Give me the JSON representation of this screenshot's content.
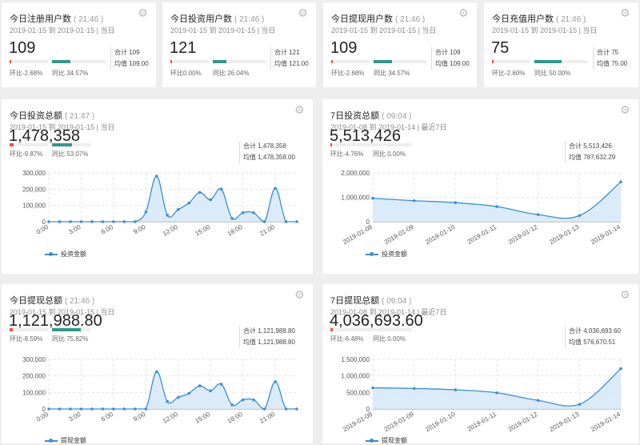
{
  "colors": {
    "accent": "#3a8fd6",
    "area": "#d6e8f8",
    "down_bar": "#e8563a",
    "up_bar": "#2e9a8c",
    "background": "#eeeeee"
  },
  "icons": {
    "settings": "gear-icon"
  },
  "stat_cards": [
    {
      "title": "今日注册用户数",
      "time": "( 21:46 )",
      "range": "2019-01-15 到 2019-01-15 | 当日",
      "value": "109",
      "hb": "环比-2.68%",
      "tb": "同比 34.57%",
      "hb_pct": 2.68,
      "tb_pct": 34.57,
      "sum": "合计 109",
      "avg": "均值 109.00"
    },
    {
      "title": "今日投资用户数",
      "time": "( 21:46 )",
      "range": "2019-01-15 到 2019-01-15 | 当日",
      "value": "121",
      "hb": "环比0.00%",
      "tb": "同比 26.04%",
      "hb_pct": 0,
      "tb_pct": 26.04,
      "sum": "合计 121",
      "avg": "均值 121.00"
    },
    {
      "title": "今日提现用户数",
      "time": "( 21:46 )",
      "range": "2019-01-15 到 2019-01-15 | 当日",
      "value": "109",
      "hb": "环比-2.68%",
      "tb": "同比 34.57%",
      "hb_pct": 2.68,
      "tb_pct": 34.57,
      "sum": "合计 109",
      "avg": "均值 109.00"
    },
    {
      "title": "今日充值用户数",
      "time": "( 21:46 )",
      "range": "2019-01-15 到 2019-01-15 | 当日",
      "value": "75",
      "hb": "环比-2.60%",
      "tb": "同比 50.00%",
      "hb_pct": 2.6,
      "tb_pct": 50.0,
      "sum": "合计 75",
      "avg": "均值 75.00"
    }
  ],
  "chart_cards": [
    {
      "title": "今日投资总额",
      "time": "( 21:47 )",
      "range": "2019-01-15 到 2019-01-15 | 当日",
      "value": "1,478,358",
      "hb": "环比-9.87%",
      "tb": "同比 53.07%",
      "hb_pct": 9.87,
      "tb_pct": 53.07,
      "sum": "合计 1,478,358",
      "avg": "均值 1,478,358.00",
      "legend": "投资金额"
    },
    {
      "title": "7日投资总额",
      "time": "( 09:04 )",
      "range": "2019-01-08 到 2019-01-14 | 最近7日",
      "value": "5,513,426",
      "hb": "环比-4.76%",
      "tb": "同比 0.00%",
      "hb_pct": 4.76,
      "tb_pct": 0,
      "sum": "合计 5,513,426",
      "avg": "均值 787,632.29",
      "legend": "投资金额"
    },
    {
      "title": "今日提现总额",
      "time": "( 21:46 )",
      "range": "2019-01-15 到 2019-01-15 | 当日",
      "value": "1,121,988.80",
      "hb": "环比-8.59%",
      "tb": "同比 75.82%",
      "hb_pct": 8.59,
      "tb_pct": 75.82,
      "sum": "合计 1,121,988.80",
      "avg": "均值 1,121,988.80",
      "legend": "提现金额"
    },
    {
      "title": "7日提现总额",
      "time": "( 09:04 )",
      "range": "2019-01-08 到 2019-01-14 | 最近7日",
      "value": "4,036,693.60",
      "hb": "环比-6.48%",
      "tb": "同比 0.00%",
      "hb_pct": 6.48,
      "tb_pct": 0,
      "sum": "合计 4,036,693.60",
      "avg": "均值 576,670.51",
      "legend": "提现金额"
    }
  ],
  "chart_data": [
    {
      "type": "area",
      "x": [
        0,
        1,
        2,
        3,
        4,
        5,
        6,
        7,
        8,
        9,
        10,
        11,
        12,
        13,
        14,
        15,
        16,
        17,
        18,
        19,
        20,
        21,
        22,
        23
      ],
      "xticks": [
        0,
        3,
        6,
        9,
        12,
        15,
        18,
        21
      ],
      "xtick_labels": [
        "0:00",
        "3:00",
        "6:00",
        "9:00",
        "12:00",
        "15:00",
        "18:00",
        "21:00"
      ],
      "series": [
        {
          "name": "投资金额",
          "values": [
            0,
            0,
            0,
            0,
            0,
            0,
            0,
            0,
            0,
            60000,
            280000,
            40000,
            75000,
            115000,
            180000,
            135000,
            200000,
            20000,
            55000,
            55000,
            0,
            205000,
            0,
            0
          ]
        }
      ],
      "ylim": [
        0,
        300000
      ],
      "yticks": [
        0,
        100000,
        200000,
        300000
      ],
      "ytick_labels": [
        "0",
        "100,000",
        "200,000",
        "300,000"
      ],
      "legend": "bottom-left",
      "grid": true
    },
    {
      "type": "area",
      "x": [
        "2019-01-08",
        "2019-01-09",
        "2019-01-10",
        "2019-01-11",
        "2019-01-12",
        "2019-01-13",
        "2019-01-14"
      ],
      "xtick_labels": [
        "2019-01-08",
        "2019-01-09",
        "2019-01-10",
        "2019-01-11",
        "2019-01-12",
        "2019-01-13",
        "2019-01-14"
      ],
      "series": [
        {
          "name": "投资金额",
          "values": [
            960000,
            860000,
            780000,
            620000,
            290000,
            250000,
            1630000
          ]
        }
      ],
      "ylim": [
        0,
        2000000
      ],
      "yticks": [
        0,
        1000000,
        2000000
      ],
      "ytick_labels": [
        "0",
        "1,000,000",
        "2,000,000"
      ],
      "legend": "bottom-left",
      "grid": true
    },
    {
      "type": "area",
      "x": [
        0,
        1,
        2,
        3,
        4,
        5,
        6,
        7,
        8,
        9,
        10,
        11,
        12,
        13,
        14,
        15,
        16,
        17,
        18,
        19,
        20,
        21,
        22,
        23
      ],
      "xticks": [
        0,
        3,
        6,
        9,
        12,
        15,
        18,
        21
      ],
      "xtick_labels": [
        "0:00",
        "3:00",
        "6:00",
        "9:00",
        "12:00",
        "15:00",
        "18:00",
        "21:00"
      ],
      "series": [
        {
          "name": "提现金额",
          "values": [
            0,
            0,
            0,
            0,
            0,
            0,
            0,
            0,
            0,
            0,
            225000,
            45000,
            70000,
            95000,
            140000,
            110000,
            150000,
            25000,
            55000,
            55000,
            0,
            165000,
            0,
            0
          ]
        }
      ],
      "ylim": [
        0,
        300000
      ],
      "yticks": [
        0,
        100000,
        200000,
        300000
      ],
      "ytick_labels": [
        "0",
        "100,000",
        "200,000",
        "300,000"
      ],
      "legend": "bottom-left",
      "grid": true
    },
    {
      "type": "area",
      "x": [
        "2019-01-08",
        "2019-01-09",
        "2019-01-10",
        "2019-01-11",
        "2019-01-12",
        "2019-01-13",
        "2019-01-14"
      ],
      "xtick_labels": [
        "2019-01-08",
        "2019-01-09",
        "2019-01-10",
        "2019-01-11",
        "2019-01-12",
        "2019-01-13",
        "2019-01-14"
      ],
      "series": [
        {
          "name": "提现金额",
          "values": [
            640000,
            620000,
            580000,
            490000,
            260000,
            140000,
            1220000
          ]
        }
      ],
      "ylim": [
        0,
        1500000
      ],
      "yticks": [
        0,
        500000,
        1000000,
        1500000
      ],
      "ytick_labels": [
        "0",
        "500,000",
        "1,000,000",
        "1,500,000"
      ],
      "legend": "bottom-left",
      "grid": true
    }
  ]
}
